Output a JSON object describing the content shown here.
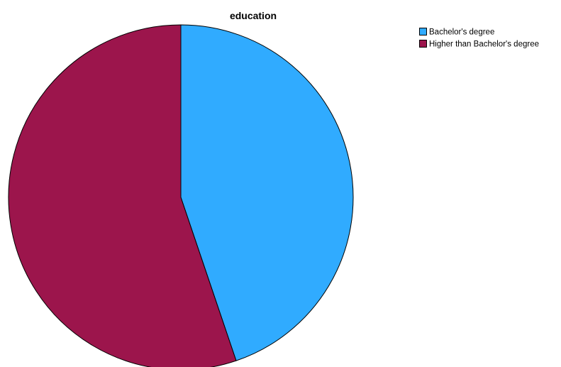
{
  "chart_data": {
    "type": "pie",
    "title": "education",
    "categories": [
      "Bachelor's degree",
      "Higher than Bachelor's degree"
    ],
    "values": [
      44.8,
      55.2
    ],
    "colors": [
      "#30abff",
      "#9c154c"
    ],
    "start_angle_deg": 0,
    "direction": "clockwise",
    "legend": "top-right"
  }
}
